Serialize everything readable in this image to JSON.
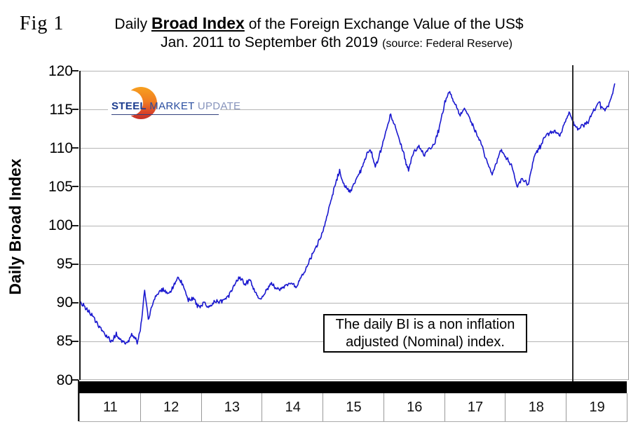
{
  "fig_label": "Fig 1",
  "title": {
    "prefix": "Daily ",
    "emphasis": "Broad Index",
    "suffix": " of the Foreign Exchange Value of the US$",
    "line2": "Jan. 2011 to September 6th 2019 ",
    "source": "(source: Federal Reserve)"
  },
  "logo": {
    "word1": "STEEL",
    "word2": " MARKET",
    "word3": " UPDATE"
  },
  "annotation": {
    "line1": "The daily BI is a non inflation",
    "line2": "adjusted (Nominal) index."
  },
  "y_axis": {
    "title": "Daily Broad Index",
    "ticks": [
      120,
      115,
      110,
      105,
      100,
      95,
      90,
      85,
      80
    ]
  },
  "x_axis": {
    "ticks": [
      "11",
      "12",
      "13",
      "14",
      "15",
      "16",
      "17",
      "18",
      "19"
    ]
  },
  "colors": {
    "line": "#1a18cf",
    "grid": "#b5b5b5",
    "marker": "#2b2b2b",
    "bottom_bar": "#000000",
    "logo_navy": "#1d3d8f",
    "logo_light_blue": "#8794bc",
    "logo_orange": "#f7a01f",
    "logo_red": "#c52f28"
  },
  "marker_year": 2019.0,
  "chart_data": {
    "type": "line",
    "title": "Daily Broad Index of the Foreign Exchange Value of the US$, Jan. 2011 to September 6th 2019",
    "ylabel": "Daily Broad Index",
    "xlabel": "",
    "ylim": [
      80,
      120
    ],
    "xlim": [
      2011.0,
      2019.9
    ],
    "grid": true,
    "x_tick_labels": [
      "11",
      "12",
      "13",
      "14",
      "15",
      "16",
      "17",
      "18",
      "19"
    ],
    "annotation_text": "The daily BI is a non inflation adjusted (Nominal) index.",
    "vertical_marker_x": 2019.0,
    "series": [
      {
        "name": "Daily Broad Index",
        "points": [
          [
            2011.0,
            90.1
          ],
          [
            2011.08,
            89.2
          ],
          [
            2011.17,
            88.5
          ],
          [
            2011.25,
            87.6
          ],
          [
            2011.33,
            86.6
          ],
          [
            2011.42,
            85.7
          ],
          [
            2011.5,
            84.9
          ],
          [
            2011.58,
            85.9
          ],
          [
            2011.67,
            85.0
          ],
          [
            2011.75,
            84.6
          ],
          [
            2011.83,
            85.9
          ],
          [
            2011.92,
            84.8
          ],
          [
            2011.97,
            86.5
          ],
          [
            2012.04,
            91.5
          ],
          [
            2012.1,
            87.9
          ],
          [
            2012.17,
            89.8
          ],
          [
            2012.25,
            91.2
          ],
          [
            2012.33,
            91.7
          ],
          [
            2012.42,
            91.0
          ],
          [
            2012.5,
            92.0
          ],
          [
            2012.58,
            93.3
          ],
          [
            2012.67,
            92.2
          ],
          [
            2012.75,
            90.3
          ],
          [
            2012.83,
            90.5
          ],
          [
            2012.92,
            89.4
          ],
          [
            2013.0,
            90.1
          ],
          [
            2013.08,
            89.3
          ],
          [
            2013.17,
            90.0
          ],
          [
            2013.25,
            90.2
          ],
          [
            2013.33,
            90.3
          ],
          [
            2013.42,
            91.1
          ],
          [
            2013.5,
            92.3
          ],
          [
            2013.58,
            93.4
          ],
          [
            2013.67,
            92.3
          ],
          [
            2013.75,
            92.9
          ],
          [
            2013.83,
            91.5
          ],
          [
            2013.92,
            90.3
          ],
          [
            2014.0,
            91.3
          ],
          [
            2014.08,
            92.4
          ],
          [
            2014.17,
            91.9
          ],
          [
            2014.25,
            91.6
          ],
          [
            2014.33,
            92.3
          ],
          [
            2014.42,
            92.5
          ],
          [
            2014.5,
            92.1
          ],
          [
            2014.58,
            93.1
          ],
          [
            2014.67,
            94.5
          ],
          [
            2014.75,
            95.9
          ],
          [
            2014.83,
            97.3
          ],
          [
            2014.92,
            98.7
          ],
          [
            2015.0,
            101.1
          ],
          [
            2015.08,
            103.6
          ],
          [
            2015.17,
            106.1
          ],
          [
            2015.21,
            106.9
          ],
          [
            2015.29,
            105.1
          ],
          [
            2015.38,
            104.4
          ],
          [
            2015.46,
            105.7
          ],
          [
            2015.54,
            106.9
          ],
          [
            2015.63,
            108.7
          ],
          [
            2015.71,
            109.9
          ],
          [
            2015.79,
            107.6
          ],
          [
            2015.88,
            109.6
          ],
          [
            2015.96,
            112.1
          ],
          [
            2016.04,
            114.3
          ],
          [
            2016.13,
            112.4
          ],
          [
            2016.21,
            110.4
          ],
          [
            2016.29,
            108.1
          ],
          [
            2016.33,
            107.3
          ],
          [
            2016.42,
            109.6
          ],
          [
            2016.5,
            110.1
          ],
          [
            2016.58,
            109.1
          ],
          [
            2016.67,
            109.9
          ],
          [
            2016.75,
            110.6
          ],
          [
            2016.83,
            112.6
          ],
          [
            2016.92,
            115.9
          ],
          [
            2017.0,
            117.3
          ],
          [
            2017.08,
            115.7
          ],
          [
            2017.17,
            114.3
          ],
          [
            2017.25,
            115.1
          ],
          [
            2017.33,
            113.6
          ],
          [
            2017.42,
            112.1
          ],
          [
            2017.5,
            110.9
          ],
          [
            2017.58,
            108.8
          ],
          [
            2017.69,
            106.6
          ],
          [
            2017.83,
            109.8
          ],
          [
            2017.92,
            108.6
          ],
          [
            2018.0,
            108.0
          ],
          [
            2018.09,
            105.1
          ],
          [
            2018.17,
            105.9
          ],
          [
            2018.28,
            105.3
          ],
          [
            2018.37,
            108.9
          ],
          [
            2018.46,
            110.0
          ],
          [
            2018.54,
            111.4
          ],
          [
            2018.63,
            111.9
          ],
          [
            2018.71,
            112.3
          ],
          [
            2018.79,
            111.6
          ],
          [
            2018.88,
            113.5
          ],
          [
            2018.94,
            114.7
          ],
          [
            2019.0,
            113.4
          ],
          [
            2019.08,
            112.4
          ],
          [
            2019.17,
            112.9
          ],
          [
            2019.25,
            113.4
          ],
          [
            2019.33,
            114.7
          ],
          [
            2019.42,
            115.9
          ],
          [
            2019.5,
            114.9
          ],
          [
            2019.58,
            115.6
          ],
          [
            2019.63,
            116.7
          ],
          [
            2019.68,
            118.3
          ]
        ]
      }
    ]
  }
}
